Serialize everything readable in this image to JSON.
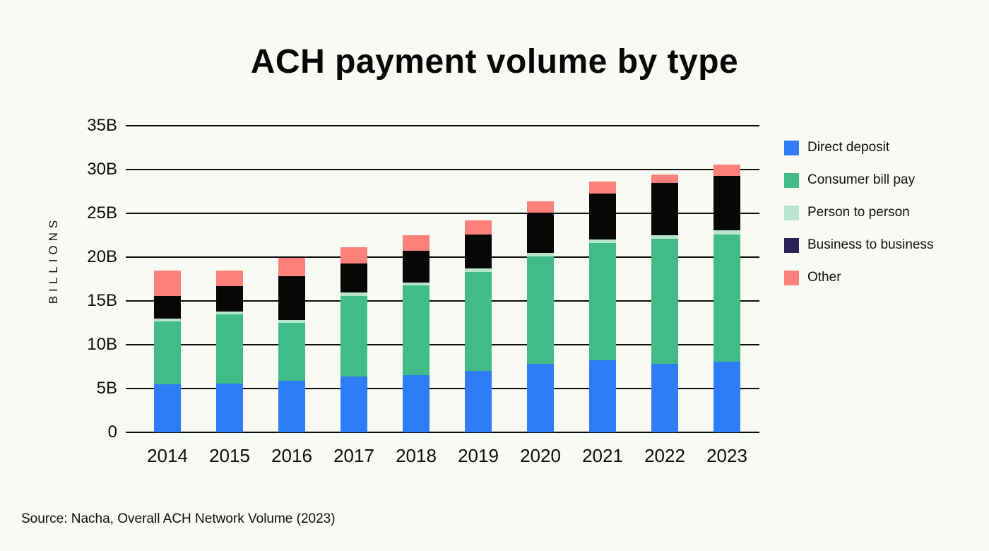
{
  "title": "ACH payment volume by type",
  "source": "Source: Nacha, Overall ACH Network Volume (2023)",
  "colors": {
    "background": "#f8fbf3",
    "gridline": "#0c0c0c",
    "text": "#0d0d0d",
    "direct_deposit": "#2e7cf6",
    "consumer_bill_pay": "#41bc86",
    "person_to_person": "#b7e5cd",
    "business_to_business_bar": "#070707",
    "business_to_business_swatch": "#2a2158",
    "other": "#fc817a"
  },
  "y_axis": {
    "label": "BILLIONS",
    "ticks": [
      "0",
      "5B",
      "10B",
      "15B",
      "20B",
      "25B",
      "30B",
      "35B"
    ],
    "tick_values": [
      0,
      5,
      10,
      15,
      20,
      25,
      30,
      35
    ],
    "max": 35
  },
  "legend": [
    {
      "label": "Direct deposit",
      "swatch": "#2e7cf6"
    },
    {
      "label": "Consumer bill pay",
      "swatch": "#41bc86"
    },
    {
      "label": "Person to person",
      "swatch": "#b7e5cd"
    },
    {
      "label": "Business to business",
      "swatch": "#2a2158"
    },
    {
      "label": "Other",
      "swatch": "#fc817a"
    }
  ],
  "chart_data": {
    "type": "bar",
    "stacked": true,
    "title": "ACH payment volume by type",
    "xlabel": "",
    "ylabel": "BILLIONS",
    "ylim": [
      0,
      35
    ],
    "grid": true,
    "legend_position": "right",
    "categories": [
      "2014",
      "2015",
      "2016",
      "2017",
      "2018",
      "2019",
      "2020",
      "2021",
      "2022",
      "2023"
    ],
    "series": [
      {
        "name": "Direct deposit",
        "color": "#2e7cf6",
        "values": [
          5.5,
          5.6,
          5.9,
          6.4,
          6.5,
          7.0,
          7.8,
          8.2,
          7.8,
          8.1
        ]
      },
      {
        "name": "Consumer bill pay",
        "color": "#41bc86",
        "values": [
          7.2,
          7.9,
          6.6,
          9.2,
          10.3,
          11.3,
          12.3,
          13.4,
          14.3,
          14.5
        ]
      },
      {
        "name": "Person to person",
        "color": "#b7e5cd",
        "values": [
          0.3,
          0.3,
          0.3,
          0.4,
          0.3,
          0.4,
          0.4,
          0.4,
          0.4,
          0.5
        ]
      },
      {
        "name": "Business to business",
        "color": "#070707",
        "values": [
          2.6,
          2.9,
          5.0,
          3.3,
          3.6,
          3.9,
          4.6,
          5.3,
          6.0,
          6.2
        ]
      },
      {
        "name": "Other",
        "color": "#fc817a",
        "values": [
          2.9,
          1.8,
          2.1,
          1.8,
          1.8,
          1.6,
          1.3,
          1.3,
          0.9,
          1.3
        ]
      }
    ],
    "totals": [
      18.5,
      18.5,
      19.9,
      21.1,
      22.5,
      24.2,
      26.4,
      28.6,
      29.4,
      30.6
    ]
  }
}
